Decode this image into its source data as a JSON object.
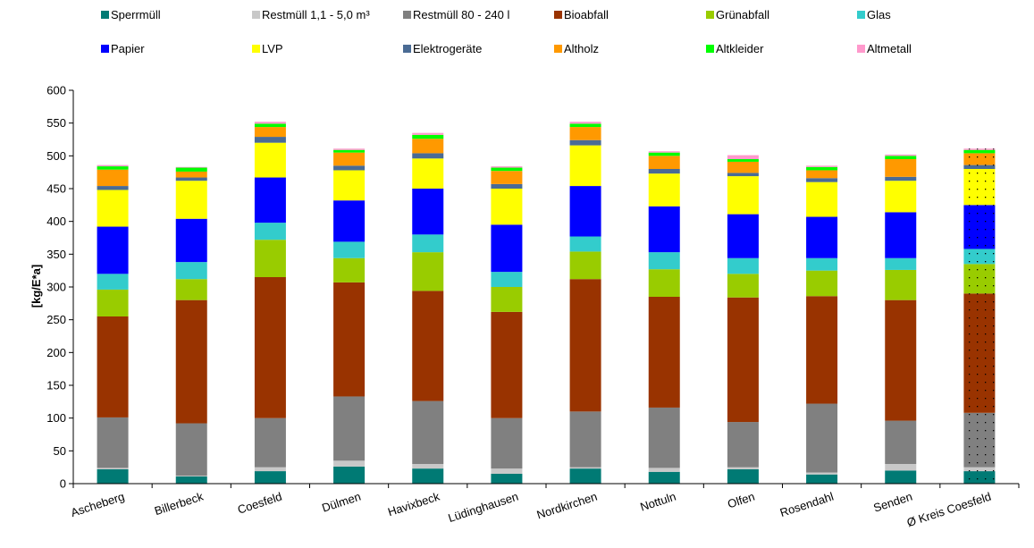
{
  "chart_data": {
    "type": "bar",
    "stacked": true,
    "ylabel": "[kg/E*a]",
    "ylim": [
      0,
      600
    ],
    "yticks": [
      0,
      50,
      100,
      150,
      200,
      250,
      300,
      350,
      400,
      450,
      500,
      550,
      600
    ],
    "grid": false,
    "legend_position": "top",
    "categories": [
      "Ascheberg",
      "Billerbeck",
      "Coesfeld",
      "Dülmen",
      "Havixbeck",
      "Lüdinghausen",
      "Nordkirchen",
      "Nottuln",
      "Olfen",
      "Rosendahl",
      "Senden",
      "Ø Kreis Coesfeld"
    ],
    "series": [
      {
        "name": "Sperrmüll",
        "color": "#007a74",
        "values": [
          22,
          11,
          19,
          26,
          23,
          15,
          23,
          18,
          22,
          14,
          20,
          19
        ]
      },
      {
        "name": "Restmüll 1,1 - 5,0 m³",
        "color": "#c8c8c8",
        "values": [
          2,
          1,
          6,
          9,
          7,
          8,
          2,
          6,
          3,
          3,
          10,
          6
        ]
      },
      {
        "name": "Restmüll 80 - 240 l",
        "color": "#808080",
        "values": [
          77,
          80,
          75,
          98,
          96,
          77,
          85,
          92,
          69,
          105,
          66,
          83
        ]
      },
      {
        "name": "Bioabfall",
        "color": "#993300",
        "values": [
          154,
          188,
          215,
          174,
          168,
          162,
          202,
          169,
          190,
          164,
          184,
          182
        ]
      },
      {
        "name": "Grünabfall",
        "color": "#99cc00",
        "values": [
          41,
          32,
          57,
          37,
          59,
          38,
          42,
          42,
          36,
          39,
          46,
          45
        ]
      },
      {
        "name": "Glas",
        "color": "#33cccc",
        "values": [
          24,
          26,
          26,
          25,
          27,
          23,
          23,
          26,
          24,
          19,
          18,
          23
        ]
      },
      {
        "name": "Papier",
        "color": "#0000ff",
        "values": [
          72,
          66,
          69,
          63,
          70,
          72,
          77,
          70,
          67,
          63,
          70,
          67
        ]
      },
      {
        "name": "LVP",
        "color": "#ffff00",
        "values": [
          56,
          58,
          53,
          46,
          46,
          55,
          62,
          50,
          58,
          53,
          48,
          55
        ]
      },
      {
        "name": "Elektrogeräte",
        "color": "#4a6b94",
        "values": [
          6,
          5,
          9,
          7,
          8,
          7,
          8,
          7,
          5,
          6,
          6,
          6
        ]
      },
      {
        "name": "Altholz",
        "color": "#ff9900",
        "values": [
          25,
          9,
          15,
          20,
          22,
          20,
          20,
          20,
          17,
          12,
          27,
          18
        ]
      },
      {
        "name": "Altkleider",
        "color": "#00ff00",
        "values": [
          5,
          6,
          5,
          4,
          6,
          5,
          5,
          5,
          4,
          5,
          5,
          5
        ]
      },
      {
        "name": "Altmetall",
        "color": "#ff99cc",
        "values": [
          2,
          1,
          3,
          2,
          3,
          2,
          3,
          2,
          6,
          2,
          2,
          2
        ]
      }
    ],
    "pattern_category": "Ø Kreis Coesfeld"
  }
}
